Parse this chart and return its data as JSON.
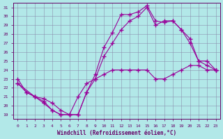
{
  "bg_color": "#b2e8e8",
  "line_color": "#990099",
  "xlabel": "Windchill (Refroidissement éolien,°C)",
  "xlim_min": -0.5,
  "xlim_max": 23.5,
  "ylim_min": 18.5,
  "ylim_max": 31.5,
  "xticks": [
    0,
    1,
    2,
    3,
    4,
    5,
    6,
    7,
    8,
    9,
    10,
    11,
    12,
    13,
    14,
    15,
    16,
    17,
    18,
    19,
    20,
    21,
    22,
    23
  ],
  "yticks": [
    19,
    20,
    21,
    22,
    23,
    24,
    25,
    26,
    27,
    28,
    29,
    30,
    31
  ],
  "line1_x": [
    0,
    1,
    2,
    3,
    4,
    5,
    6,
    7,
    8,
    9,
    10,
    11,
    12,
    13,
    14,
    15,
    16,
    17,
    18,
    19,
    20,
    21,
    22,
    23
  ],
  "line1_y": [
    23.0,
    21.5,
    21.0,
    20.3,
    19.5,
    19.0,
    19.0,
    19.0,
    21.5,
    23.5,
    26.5,
    28.2,
    30.2,
    30.2,
    30.5,
    31.2,
    29.5,
    29.3,
    29.5,
    28.5,
    27.0,
    25.0,
    24.5,
    24.0
  ],
  "line2_x": [
    0,
    2,
    3,
    4,
    5,
    6,
    7,
    8,
    9,
    10,
    11,
    12,
    13,
    14,
    15,
    16,
    17,
    18,
    19,
    20,
    21,
    22,
    23
  ],
  "line2_y": [
    22.5,
    21.0,
    20.5,
    19.5,
    19.0,
    19.0,
    19.0,
    21.5,
    23.0,
    25.5,
    27.0,
    28.5,
    29.5,
    30.0,
    31.0,
    29.0,
    29.5,
    29.5,
    28.5,
    27.5,
    25.0,
    25.0,
    24.0
  ],
  "line3_x": [
    0,
    1,
    2,
    3,
    4,
    5,
    6,
    7,
    8,
    9,
    10,
    11,
    12,
    13,
    14,
    15,
    16,
    17,
    18,
    19,
    20,
    21,
    22,
    23
  ],
  "line3_y": [
    22.5,
    21.5,
    21.0,
    20.8,
    20.3,
    19.5,
    19.0,
    21.0,
    22.5,
    23.0,
    23.5,
    24.0,
    24.0,
    24.0,
    24.0,
    24.0,
    23.0,
    23.0,
    23.5,
    24.0,
    24.5,
    24.5,
    24.0,
    24.0
  ]
}
